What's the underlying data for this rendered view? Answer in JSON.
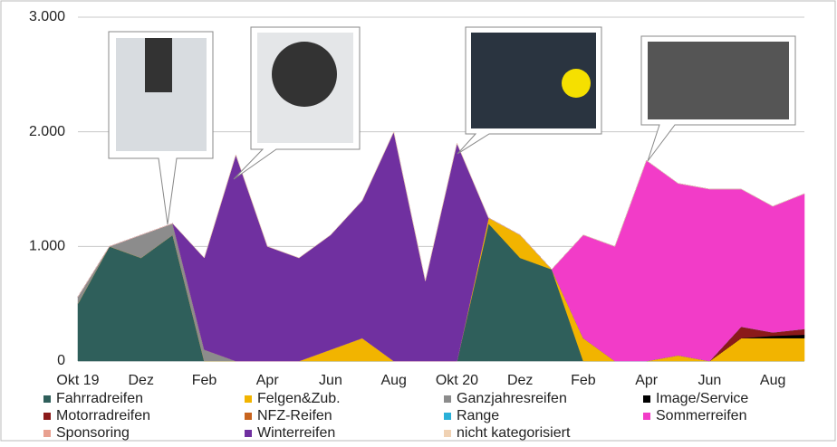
{
  "chart_data": {
    "type": "area",
    "categories": [
      "Okt 19",
      null,
      "Dez",
      null,
      "Feb",
      null,
      "Apr",
      null,
      "Jun",
      null,
      "Aug",
      null,
      "Okt 20",
      null,
      "Dez",
      null,
      "Feb",
      null,
      "Apr",
      null,
      "Jun",
      null,
      "Aug",
      null
    ],
    "series": [
      {
        "name": "Fahrradreifen",
        "color": "#2f5f5b",
        "values": [
          500,
          1000,
          900,
          1100,
          0,
          0,
          0,
          0,
          0,
          0,
          0,
          0,
          0,
          1200,
          900,
          800,
          0,
          0,
          0,
          0,
          0,
          0,
          0,
          0
        ]
      },
      {
        "name": "Felgen&Zub.",
        "color": "#f2b400",
        "values": [
          0,
          0,
          0,
          0,
          0,
          0,
          0,
          0,
          100,
          200,
          0,
          0,
          0,
          50,
          200,
          0,
          200,
          0,
          0,
          50,
          0,
          200,
          200,
          200
        ]
      },
      {
        "name": "Ganzjahresreifen",
        "color": "#8c8c8c",
        "values": [
          60,
          0,
          200,
          100,
          100,
          0,
          0,
          0,
          0,
          0,
          0,
          0,
          0,
          0,
          0,
          0,
          0,
          0,
          0,
          0,
          0,
          0,
          0,
          0
        ]
      },
      {
        "name": "Image/Service",
        "color": "#000000",
        "values": [
          0,
          0,
          0,
          0,
          0,
          0,
          0,
          0,
          0,
          0,
          0,
          0,
          0,
          0,
          0,
          0,
          0,
          0,
          0,
          0,
          0,
          0,
          20,
          30
        ]
      },
      {
        "name": "Motorradreifen",
        "color": "#8b1a1a",
        "values": [
          0,
          0,
          0,
          0,
          0,
          0,
          0,
          0,
          0,
          0,
          0,
          0,
          0,
          0,
          0,
          0,
          0,
          0,
          0,
          0,
          0,
          100,
          30,
          50
        ]
      },
      {
        "name": "NFZ-Reifen",
        "color": "#c8641e",
        "values": [
          0,
          0,
          0,
          0,
          0,
          0,
          0,
          0,
          0,
          0,
          0,
          0,
          0,
          0,
          0,
          0,
          0,
          0,
          0,
          0,
          0,
          0,
          0,
          0
        ]
      },
      {
        "name": "Range",
        "color": "#2ab0d8",
        "values": [
          0,
          0,
          0,
          0,
          0,
          0,
          0,
          0,
          0,
          0,
          0,
          0,
          0,
          0,
          0,
          0,
          0,
          0,
          0,
          0,
          0,
          0,
          0,
          0
        ]
      },
      {
        "name": "Sommerreifen",
        "color": "#f23cc8",
        "values": [
          0,
          0,
          0,
          0,
          0,
          0,
          0,
          0,
          0,
          0,
          0,
          0,
          0,
          0,
          0,
          0,
          900,
          1000,
          1750,
          1500,
          1500,
          1200,
          1100,
          1180
        ]
      },
      {
        "name": "Sponsoring",
        "color": "#e8a090",
        "values": [
          0,
          0,
          0,
          0,
          0,
          0,
          0,
          0,
          0,
          0,
          0,
          0,
          0,
          0,
          0,
          0,
          0,
          0,
          0,
          0,
          0,
          0,
          0,
          0
        ]
      },
      {
        "name": "Winterreifen",
        "color": "#7030a0",
        "values": [
          0,
          0,
          0,
          0,
          800,
          1800,
          1000,
          900,
          1000,
          1200,
          2000,
          700,
          1900,
          0,
          0,
          0,
          0,
          0,
          0,
          0,
          0,
          0,
          0,
          0
        ]
      },
      {
        "name": "nicht kategorisiert",
        "color": "#f0d2b4",
        "values": [
          0,
          0,
          0,
          0,
          0,
          0,
          0,
          0,
          0,
          0,
          0,
          0,
          0,
          0,
          0,
          0,
          0,
          0,
          0,
          0,
          0,
          0,
          0,
          0
        ]
      }
    ],
    "ylim": [
      0,
      3000
    ],
    "yticks": [
      0,
      {
        "value": 1000,
        "label": "1.000"
      },
      {
        "value": 2000,
        "label": "2.000"
      },
      {
        "value": 3000,
        "label": "3.000"
      }
    ],
    "grid": true
  }
}
